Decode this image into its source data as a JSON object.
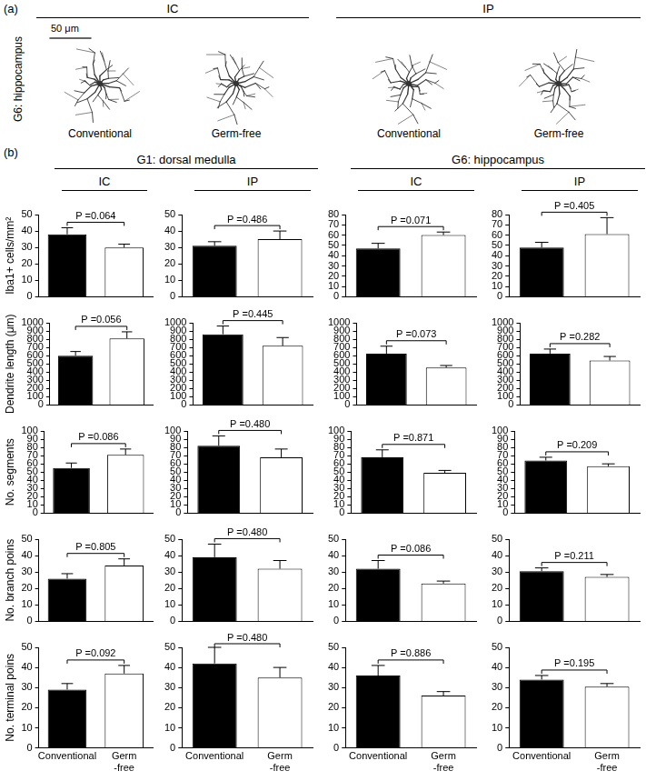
{
  "figure": {
    "panel_a": {
      "label": "(a)",
      "row_label": "G6: hippocampus",
      "scale_bar": "50 μm",
      "groups": [
        {
          "title": "IC",
          "cells": [
            "Conventional",
            "Germ-free"
          ]
        },
        {
          "title": "IP",
          "cells": [
            "Conventional",
            "Germ-free"
          ]
        }
      ]
    },
    "panel_b": {
      "label": "(b)",
      "regions": [
        {
          "title": "G1: dorsal medulla",
          "groups": [
            "IC",
            "IP"
          ]
        },
        {
          "title": "G6: hippocampus",
          "groups": [
            "IC",
            "IP"
          ]
        }
      ]
    }
  },
  "chart_data": [
    {
      "type": "bar",
      "y_label": "Iba1+ cells/mm²",
      "categories": [
        null,
        null
      ],
      "values": [
        38,
        30
      ],
      "errors": [
        4,
        2
      ],
      "colors": [
        "#000000",
        "#ffffff"
      ],
      "ylim": [
        0,
        50
      ],
      "yticks": [
        0,
        10,
        20,
        30,
        40,
        50
      ],
      "annotation": "P =0.064",
      "grid": false,
      "tick_labels": "y"
    },
    {
      "type": "bar",
      "categories": [
        null,
        null
      ],
      "values": [
        31,
        35
      ],
      "errors": [
        2.5,
        5
      ],
      "colors": [
        "#000000",
        "#ffffff"
      ],
      "ylim": [
        0,
        50
      ],
      "yticks": [
        0,
        10,
        20,
        30,
        40,
        50
      ],
      "annotation": "P =0.486",
      "grid": false,
      "tick_labels": "y"
    },
    {
      "type": "bar",
      "categories": [
        null,
        null
      ],
      "values": [
        47,
        60
      ],
      "errors": [
        5,
        3
      ],
      "colors": [
        "#000000",
        "#ffffff"
      ],
      "ylim": [
        0,
        80
      ],
      "yticks": [
        0,
        10,
        20,
        30,
        40,
        50,
        60,
        70,
        80
      ],
      "annotation": "P =0.071",
      "grid": false,
      "tick_labels": "y"
    },
    {
      "type": "bar",
      "categories": [
        null,
        null
      ],
      "values": [
        48,
        61
      ],
      "errors": [
        5,
        16
      ],
      "colors": [
        "#000000",
        "#ffffff"
      ],
      "ylim": [
        0,
        80
      ],
      "yticks": [
        0,
        10,
        20,
        30,
        40,
        50,
        60,
        70,
        80
      ],
      "annotation": "P =0.405",
      "grid": false,
      "tick_labels": "y"
    },
    {
      "type": "bar",
      "y_label": "Dendrite length (μm)",
      "categories": [
        null,
        null
      ],
      "values": [
        600,
        810
      ],
      "errors": [
        50,
        80
      ],
      "colors": [
        "#000000",
        "#ffffff"
      ],
      "ylim": [
        0,
        1000
      ],
      "yticks": [
        0,
        100,
        200,
        300,
        400,
        500,
        600,
        700,
        800,
        900,
        1000
      ],
      "annotation": "P =0.056",
      "grid": false,
      "tick_labels": "y"
    },
    {
      "type": "bar",
      "categories": [
        null,
        null
      ],
      "values": [
        860,
        720
      ],
      "errors": [
        100,
        100
      ],
      "colors": [
        "#000000",
        "#ffffff"
      ],
      "ylim": [
        0,
        1000
      ],
      "yticks": [
        0,
        100,
        200,
        300,
        400,
        500,
        600,
        700,
        800,
        900,
        1000
      ],
      "annotation": "P =0.445",
      "grid": false,
      "tick_labels": "y"
    },
    {
      "type": "bar",
      "categories": [
        null,
        null
      ],
      "values": [
        625,
        455
      ],
      "errors": [
        90,
        25
      ],
      "colors": [
        "#000000",
        "#ffffff"
      ],
      "ylim": [
        0,
        1000
      ],
      "yticks": [
        0,
        100,
        200,
        300,
        400,
        500,
        600,
        700,
        800,
        900,
        1000
      ],
      "annotation": "P =0.073",
      "grid": false,
      "tick_labels": "y"
    },
    {
      "type": "bar",
      "categories": [
        null,
        null
      ],
      "values": [
        625,
        540
      ],
      "errors": [
        55,
        50
      ],
      "colors": [
        "#000000",
        "#ffffff"
      ],
      "ylim": [
        0,
        1000
      ],
      "yticks": [
        0,
        100,
        200,
        300,
        400,
        500,
        600,
        700,
        800,
        900,
        1000
      ],
      "annotation": "P =0.282",
      "grid": false,
      "tick_labels": "y"
    },
    {
      "type": "bar",
      "y_label": "No. segments",
      "categories": [
        null,
        null
      ],
      "values": [
        55,
        71
      ],
      "errors": [
        6,
        7
      ],
      "colors": [
        "#000000",
        "#ffffff"
      ],
      "ylim": [
        0,
        100
      ],
      "yticks": [
        0,
        10,
        20,
        30,
        40,
        50,
        60,
        70,
        80,
        90,
        100
      ],
      "annotation": "P =0.086",
      "grid": false,
      "tick_labels": "y"
    },
    {
      "type": "bar",
      "categories": [
        null,
        null
      ],
      "values": [
        82,
        68
      ],
      "errors": [
        12,
        10
      ],
      "colors": [
        "#000000",
        "#ffffff"
      ],
      "ylim": [
        0,
        100
      ],
      "yticks": [
        0,
        10,
        20,
        30,
        40,
        50,
        60,
        70,
        80,
        90,
        100
      ],
      "annotation": "P =0.480",
      "grid": false,
      "tick_labels": "y"
    },
    {
      "type": "bar",
      "categories": [
        null,
        null
      ],
      "values": [
        68,
        49
      ],
      "errors": [
        9,
        3
      ],
      "colors": [
        "#000000",
        "#ffffff"
      ],
      "ylim": [
        0,
        100
      ],
      "yticks": [
        0,
        10,
        20,
        30,
        40,
        50,
        60,
        70,
        80,
        90,
        100
      ],
      "annotation": "P =0.871",
      "grid": false,
      "tick_labels": "y"
    },
    {
      "type": "bar",
      "categories": [
        null,
        null
      ],
      "values": [
        64,
        57
      ],
      "errors": [
        4,
        3
      ],
      "colors": [
        "#000000",
        "#ffffff"
      ],
      "ylim": [
        0,
        100
      ],
      "yticks": [
        0,
        10,
        20,
        30,
        40,
        50,
        60,
        70,
        80,
        90,
        100
      ],
      "annotation": "P =0.209",
      "grid": false,
      "tick_labels": "y"
    },
    {
      "type": "bar",
      "y_label": "No. branch poins",
      "categories": [
        null,
        null
      ],
      "values": [
        26,
        34
      ],
      "errors": [
        3,
        4
      ],
      "colors": [
        "#000000",
        "#ffffff"
      ],
      "ylim": [
        0,
        50
      ],
      "yticks": [
        0,
        10,
        20,
        30,
        40,
        50
      ],
      "annotation": "P =0.805",
      "grid": false,
      "tick_labels": "y"
    },
    {
      "type": "bar",
      "categories": [
        null,
        null
      ],
      "values": [
        39,
        32
      ],
      "errors": [
        8,
        5
      ],
      "colors": [
        "#000000",
        "#ffffff"
      ],
      "ylim": [
        0,
        50
      ],
      "yticks": [
        0,
        10,
        20,
        30,
        40,
        50
      ],
      "annotation": "P =0.480",
      "grid": false,
      "tick_labels": "y"
    },
    {
      "type": "bar",
      "categories": [
        null,
        null
      ],
      "values": [
        32,
        23
      ],
      "errors": [
        5,
        1.5
      ],
      "colors": [
        "#000000",
        "#ffffff"
      ],
      "ylim": [
        0,
        50
      ],
      "yticks": [
        0,
        10,
        20,
        30,
        40,
        50
      ],
      "annotation": "P =0.086",
      "grid": false,
      "tick_labels": "y"
    },
    {
      "type": "bar",
      "categories": [
        null,
        null
      ],
      "values": [
        30.5,
        27
      ],
      "errors": [
        2,
        1.5
      ],
      "colors": [
        "#000000",
        "#ffffff"
      ],
      "ylim": [
        0,
        50
      ],
      "yticks": [
        0,
        10,
        20,
        30,
        40,
        50
      ],
      "annotation": "P =0.211",
      "grid": false,
      "tick_labels": "y"
    },
    {
      "type": "bar",
      "y_label": "No. terminal poins",
      "categories": [
        "Conventional",
        [
          "Germ",
          "-free"
        ]
      ],
      "values": [
        29,
        37
      ],
      "errors": [
        3,
        4
      ],
      "colors": [
        "#000000",
        "#ffffff"
      ],
      "ylim": [
        0,
        50
      ],
      "yticks": [
        0,
        10,
        20,
        30,
        40,
        50
      ],
      "annotation": "P =0.092",
      "grid": false
    },
    {
      "type": "bar",
      "categories": [
        "Conventional",
        [
          "Germ",
          "-free"
        ]
      ],
      "values": [
        42,
        35
      ],
      "errors": [
        8,
        5
      ],
      "colors": [
        "#000000",
        "#ffffff"
      ],
      "ylim": [
        0,
        50
      ],
      "yticks": [
        0,
        10,
        20,
        30,
        40,
        50
      ],
      "annotation": "P =0.480",
      "grid": false
    },
    {
      "type": "bar",
      "categories": [
        "Conventional",
        [
          "Germ",
          "-free"
        ]
      ],
      "values": [
        36,
        26
      ],
      "errors": [
        5,
        2
      ],
      "colors": [
        "#000000",
        "#ffffff"
      ],
      "ylim": [
        0,
        50
      ],
      "yticks": [
        0,
        10,
        20,
        30,
        40,
        50
      ],
      "annotation": "P =0.886",
      "grid": false
    },
    {
      "type": "bar",
      "categories": [
        "Conventional",
        [
          "Germ",
          "-free"
        ]
      ],
      "values": [
        34,
        30.5
      ],
      "errors": [
        2,
        1.5
      ],
      "colors": [
        "#000000",
        "#ffffff"
      ],
      "ylim": [
        0,
        50
      ],
      "yticks": [
        0,
        10,
        20,
        30,
        40,
        50
      ],
      "annotation": "P =0.195",
      "grid": false
    }
  ]
}
